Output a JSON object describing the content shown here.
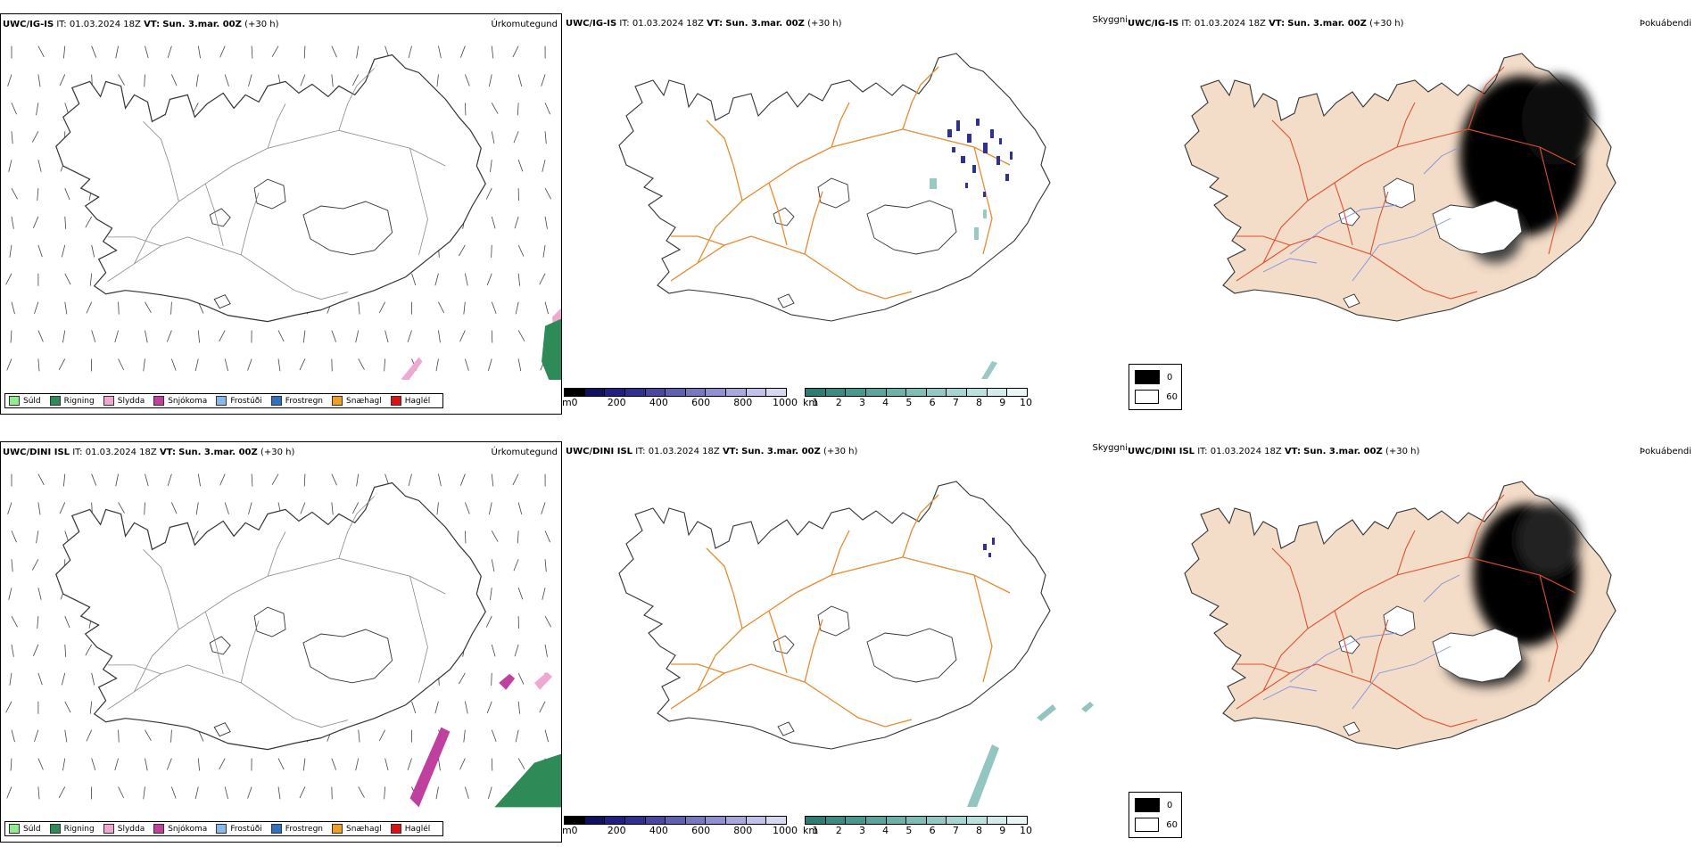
{
  "rows": [
    {
      "model": "UWC/IG-IS",
      "it_label": "IT:",
      "it_value": "01.03.2024 18Z",
      "vt_label": "VT:",
      "vt_value": "Sun. 3.mar. 00Z",
      "lead": "(+30 h)"
    },
    {
      "model": "UWC/DINI ISL",
      "it_label": "IT:",
      "it_value": "01.03.2024 18Z",
      "vt_label": "VT:",
      "vt_value": "Sun. 3.mar. 00Z",
      "lead": "(+30 h)"
    }
  ],
  "panel_titles": {
    "precip_type": "Úrkomutegund",
    "visibility": "Skyggni",
    "fog_index": "Þokuábendi"
  },
  "precip_legend": [
    {
      "label": "Súld",
      "color": "#90ee90"
    },
    {
      "label": "Rigning",
      "color": "#2e8b57"
    },
    {
      "label": "Slydda",
      "color": "#f0a8d0"
    },
    {
      "label": "Snjókoma",
      "color": "#c040a0"
    },
    {
      "label": "Frostúði",
      "color": "#87b8e8"
    },
    {
      "label": "Frostregn",
      "color": "#2f70c0"
    },
    {
      "label": "Snæhagl",
      "color": "#f0a020"
    },
    {
      "label": "Haglél",
      "color": "#e01010"
    }
  ],
  "visibility_scale_m": {
    "unit": "m",
    "ticks": [
      "0",
      "200",
      "400",
      "600",
      "800",
      "1000"
    ],
    "colors": [
      "#000000",
      "#101060",
      "#202080",
      "#303090",
      "#4848a0",
      "#6060b0",
      "#7878c0",
      "#9090d0",
      "#a8a8dc",
      "#c0c0e8",
      "#d8d8f0"
    ]
  },
  "visibility_scale_km": {
    "unit": "km",
    "ticks": [
      "1",
      "2",
      "3",
      "4",
      "5",
      "6",
      "7",
      "8",
      "9",
      "10"
    ],
    "colors": [
      "#2e7d72",
      "#3c8a80",
      "#4a978e",
      "#5aa49c",
      "#6cb0a8",
      "#80bcb5",
      "#94c8c2",
      "#a8d4cf",
      "#bde0dc",
      "#d2ece9",
      "#e8f6f4"
    ]
  },
  "fog_legend": [
    {
      "label": "0",
      "color": "#000000"
    },
    {
      "label": "60",
      "color": "#ffffff"
    }
  ],
  "colors": {
    "road_orange": "#e88a30",
    "fog_land": "#f3dcc8",
    "fog_road": "#e05030",
    "river_blue": "#8090e0"
  }
}
